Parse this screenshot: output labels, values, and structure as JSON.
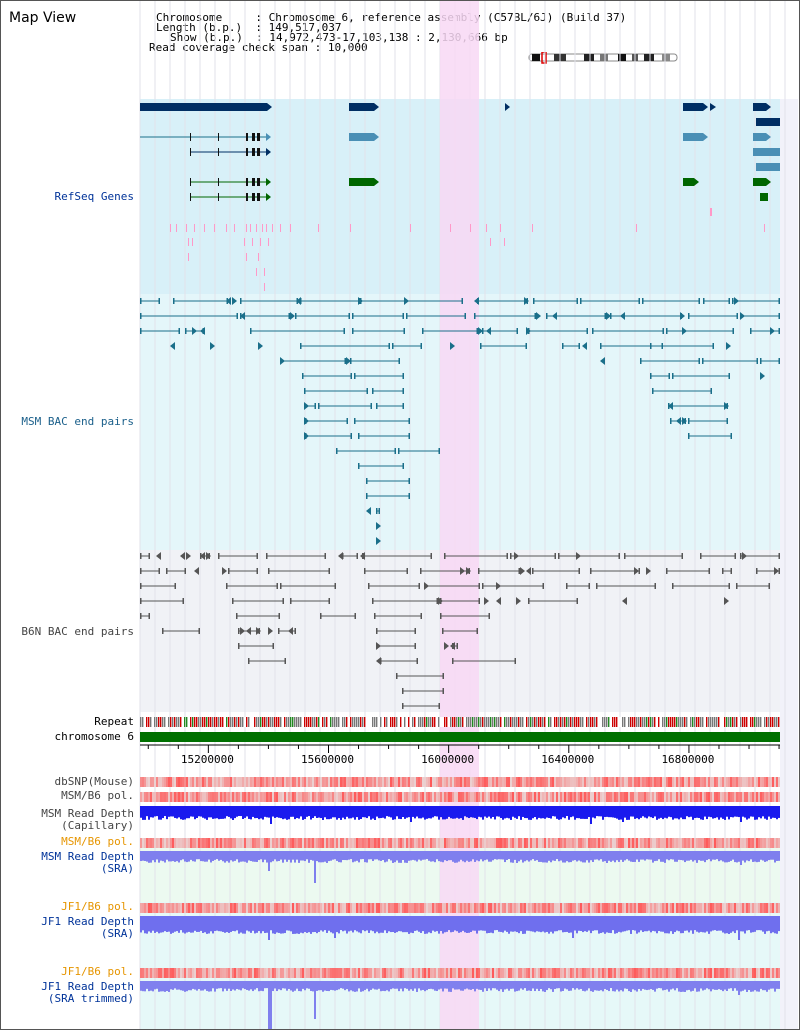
{
  "view_title": "Map View",
  "info": {
    "chromosome_key": "Chromosome",
    "chromosome_val": "Chromosome 6, reference assembly (C57BL/6J) (Build 37)",
    "length_key": "Length (b.p.)",
    "length_val": "149,517,037",
    "show_key": "Show (b.p.)",
    "show_val": "14,972,473-17,103,138 : 2,130,666 bp",
    "coverage_key": "Read coverage check span",
    "coverage_val": "10,000"
  },
  "tracks": {
    "refseq": "RefSeq Genes",
    "msm_bac": "MSM BAC end pairs",
    "b6n_bac": "B6N BAC end pairs",
    "repeat": "Repeat",
    "chromosome": "chromosome 6",
    "dbsnp": "dbSNP(Mouse)",
    "msm_b6_pol_1": "MSM/B6 pol.",
    "msm_read_depth_cap_1": "MSM Read Depth",
    "msm_read_depth_cap_2": "(Capillary)",
    "msm_b6_pol_2": "MSM/B6 pol.",
    "msm_read_depth_sra_1": "MSM Read Depth",
    "msm_read_depth_sra_2": "(SRA)",
    "jf1_b6_pol_1": "JF1/B6 pol.",
    "jf1_read_depth_sra_1": "JF1 Read Depth",
    "jf1_read_depth_sra_2": "(SRA)",
    "jf1_b6_pol_2": "JF1/B6 pol.",
    "jf1_read_depth_trim_1": "JF1 Read Depth",
    "jf1_read_depth_trim_2": "(SRA trimmed)"
  },
  "ruler": {
    "ticks": [
      {
        "pos": 15200000,
        "label": "15200000"
      },
      {
        "pos": 15600000,
        "label": "15600000"
      },
      {
        "pos": 16000000,
        "label": "16000000"
      },
      {
        "pos": 16400000,
        "label": "16400000"
      },
      {
        "pos": 16800000,
        "label": "16800000"
      }
    ]
  },
  "colors": {
    "refseq_bg": "#d8f0f8",
    "msm_bg": "#e4f6fa",
    "b6n_bg": "#f0f2f6",
    "highlight": "#f8d8f4",
    "gene_dark": "#002e63",
    "gene_mid": "#4a8fb5",
    "gene_green": "#006600",
    "msm_line": "#1a6f8a",
    "b6n_line": "#555555",
    "label_blue": "#003399",
    "label_orange": "#e69500",
    "chrom_bar": "#007000"
  }
}
